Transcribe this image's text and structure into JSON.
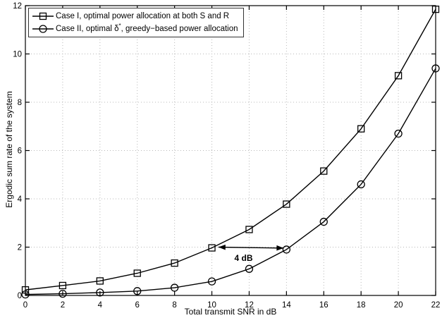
{
  "chart_data": {
    "type": "line",
    "title": "",
    "xlabel": "Total transmit SNR in dB",
    "ylabel": "Ergodic sum rate of the system",
    "xlim": [
      0,
      22
    ],
    "ylim": [
      0,
      12
    ],
    "xticks": [
      0,
      2,
      4,
      6,
      8,
      10,
      12,
      14,
      16,
      18,
      20,
      22
    ],
    "yticks": [
      0,
      2,
      4,
      6,
      8,
      10,
      12
    ],
    "grid": true,
    "grid_style": "dotted",
    "legend_position": "top-left",
    "line_color": "#000000",
    "grid_color": "#b8b8b8",
    "x": [
      0,
      2,
      4,
      6,
      8,
      10,
      12,
      14,
      16,
      18,
      20,
      22
    ],
    "series": [
      {
        "id": "case-1",
        "name": "Case I, optimal power allocation at both S and R",
        "marker": "square",
        "values": [
          0.23,
          0.41,
          0.6,
          0.92,
          1.34,
          1.97,
          2.73,
          3.78,
          5.15,
          6.9,
          9.1,
          11.85
        ],
        "legend": {
          "prefix": "Case I, optimal power allocation at both S and R",
          "sup": "",
          "suffix": ""
        }
      },
      {
        "id": "case-2",
        "name": "Case II, optimal δ*, greedy−based power allocation",
        "marker": "circle",
        "values": [
          0.04,
          0.07,
          0.12,
          0.18,
          0.32,
          0.58,
          1.1,
          1.9,
          3.05,
          4.6,
          6.7,
          9.4
        ],
        "legend": {
          "prefix": "Case II, optimal δ",
          "sup": "*",
          "suffix": ", greedy−based power allocation"
        }
      }
    ],
    "annotation": {
      "label": "4 dB",
      "x1": 10.35,
      "y1": 2.0,
      "x2": 13.85,
      "y2": 1.96,
      "label_x": 11.7,
      "label_y": 1.55
    }
  }
}
